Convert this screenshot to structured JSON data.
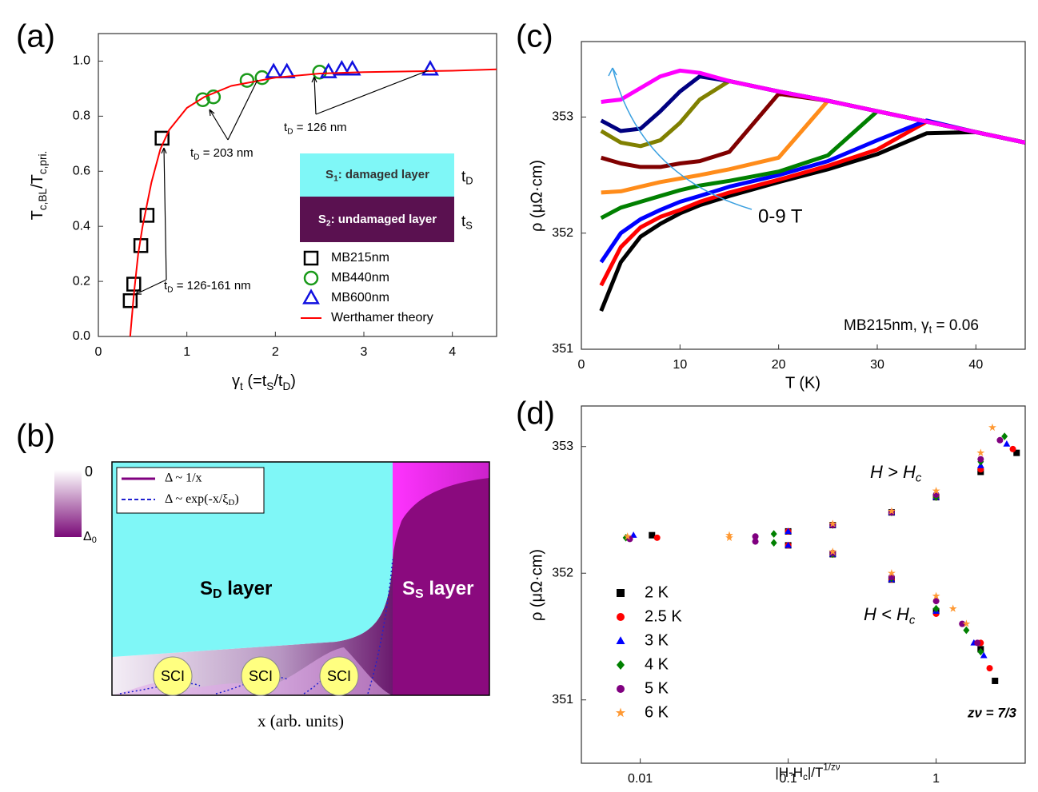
{
  "chart_data": [
    {
      "type": "scatter",
      "label": "(a)",
      "xlabel": [
        "γ",
        "t",
        " (=t",
        "S",
        "/t",
        "D",
        ")"
      ],
      "ylabel": [
        "T",
        "c,BL",
        "/T",
        "c,pri."
      ],
      "xlim": [
        0,
        4.5
      ],
      "ylim": [
        0,
        1.1
      ],
      "xticks": [
        0,
        1,
        2,
        3,
        4
      ],
      "yticks": [
        {
          "value": 0,
          "label": "0.0"
        },
        0.2,
        0.4,
        0.6,
        0.8,
        {
          "value": 1,
          "label": "1.0"
        }
      ],
      "series": [
        {
          "name": "MB215nm",
          "color": "#000000",
          "marker": "square",
          "x": [
            0.36,
            0.4,
            0.48,
            0.55,
            0.72
          ],
          "values": [
            0.13,
            0.19,
            0.33,
            0.44,
            0.72
          ]
        },
        {
          "name": "MB440nm",
          "color": "#1a9a1a",
          "marker": "circle",
          "x": [
            1.18,
            1.3,
            1.68,
            1.85,
            2.5
          ],
          "values": [
            0.86,
            0.87,
            0.93,
            0.94,
            0.96
          ]
        },
        {
          "name": "MB600nm",
          "color": "#1010e0",
          "marker": "triangle",
          "x": [
            1.98,
            2.13,
            2.6,
            2.75,
            2.87,
            3.75
          ],
          "values": [
            0.96,
            0.96,
            0.96,
            0.97,
            0.97,
            0.97
          ]
        },
        {
          "name": "Werthamer theory",
          "color": "#ff0000",
          "marker": "line",
          "x": [
            0.36,
            0.4,
            0.45,
            0.5,
            0.6,
            0.7,
            0.8,
            1.0,
            1.2,
            1.5,
            2.0,
            2.5,
            3.0,
            4.0,
            4.5
          ],
          "values": [
            0.0,
            0.15,
            0.3,
            0.4,
            0.56,
            0.68,
            0.75,
            0.83,
            0.87,
            0.91,
            0.94,
            0.955,
            0.96,
            0.965,
            0.97
          ]
        }
      ],
      "annotations": [
        [
          "t",
          "D",
          " = 203 nm"
        ],
        [
          "t",
          "D",
          " = 126 nm"
        ],
        [
          "t",
          "D",
          " = 126-161 nm"
        ]
      ],
      "inset": [
        [
          "S",
          "1",
          ": damaged layer"
        ],
        [
          "t",
          "D"
        ],
        [
          "S",
          "2",
          ": undamaged layer"
        ],
        [
          "t",
          "S"
        ]
      ]
    },
    {
      "type": "diagram",
      "label": "(b)",
      "left_layer": [
        "S",
        "D",
        " layer"
      ],
      "right_layer": [
        "S",
        "S",
        " layer"
      ],
      "interfaces": [
        "SCI",
        "SCI",
        "SCI"
      ],
      "legend": [
        "Δ ~ 1/x",
        [
          "Δ ~ exp(-x/ξ",
          "D",
          ")"
        ]
      ],
      "colorbar": [
        "0",
        [
          "Δ",
          "0"
        ]
      ],
      "xlabel": "x (arb. units)"
    },
    {
      "type": "line",
      "label": "(c)",
      "xlabel": "T (K)",
      "ylabel": "ρ (μΩ·cm)",
      "xlim": [
        0,
        45
      ],
      "ylim": [
        351,
        353.65
      ],
      "xticks": [
        0,
        10,
        20,
        30,
        40
      ],
      "yticks": [
        351,
        352,
        353
      ],
      "x": [
        2,
        4,
        6,
        8,
        10,
        12,
        15,
        20,
        25,
        30,
        35,
        40,
        45
      ],
      "series": [
        {
          "color": "#000000",
          "values": [
            351.33,
            351.75,
            351.97,
            352.08,
            352.17,
            352.24,
            352.32,
            352.44,
            352.55,
            352.68,
            352.86,
            352.87,
            352.78
          ]
        },
        {
          "color": "#ff0000",
          "values": [
            351.55,
            351.88,
            352.05,
            352.14,
            352.2,
            352.27,
            352.35,
            352.46,
            352.58,
            352.72,
            352.96,
            352.87,
            352.78
          ]
        },
        {
          "color": "#0000ff",
          "values": [
            351.75,
            352.0,
            352.12,
            352.2,
            352.27,
            352.32,
            352.4,
            352.5,
            352.62,
            352.8,
            352.97,
            352.87,
            352.78
          ]
        },
        {
          "color": "#008000",
          "values": [
            352.13,
            352.22,
            352.27,
            352.32,
            352.37,
            352.41,
            352.45,
            352.53,
            352.67,
            353.05,
            352.96,
            352.87,
            352.78
          ]
        },
        {
          "color": "#ff8c1a",
          "values": [
            352.35,
            352.36,
            352.4,
            352.44,
            352.47,
            352.5,
            352.55,
            352.65,
            353.14,
            353.05,
            352.96,
            352.87,
            352.78
          ]
        },
        {
          "color": "#800000",
          "values": [
            352.65,
            352.6,
            352.57,
            352.57,
            352.6,
            352.62,
            352.7,
            353.2,
            353.14,
            353.05,
            352.96,
            352.87,
            352.78
          ]
        },
        {
          "color": "#808000",
          "values": [
            352.88,
            352.78,
            352.75,
            352.8,
            352.95,
            353.15,
            353.31,
            353.22,
            353.14,
            353.05,
            352.96,
            352.87,
            352.78
          ]
        },
        {
          "color": "#000080",
          "values": [
            352.97,
            352.88,
            352.9,
            353.05,
            353.22,
            353.35,
            353.31,
            353.22,
            353.14,
            353.05,
            352.96,
            352.87,
            352.78
          ]
        },
        {
          "color": "#ff00ff",
          "values": [
            353.13,
            353.15,
            353.25,
            353.35,
            353.4,
            353.38,
            353.31,
            353.22,
            353.14,
            353.05,
            352.96,
            352.87,
            352.78
          ]
        }
      ],
      "annotations": [
        "0-9 T",
        [
          "MB215nm, γ",
          "t",
          " = 0.06"
        ]
      ]
    },
    {
      "type": "scatter",
      "label": "(d)",
      "xscale": "log",
      "xlabel": [
        "|H-H",
        "c",
        "|/T",
        "1/zν"
      ],
      "ylabel": "ρ (μΩ·cm)",
      "xlim": [
        0.004,
        4
      ],
      "ylim": [
        350.5,
        353.32
      ],
      "xticks": [
        0.01,
        0.1,
        1
      ],
      "yticks": [
        351,
        352,
        353
      ],
      "series": [
        {
          "name": "2 K",
          "color": "#000000",
          "marker": "square",
          "x": [
            0.012,
            0.1,
            0.2,
            0.5,
            1,
            2,
            3.5,
            0.1,
            0.2,
            0.5,
            1,
            2,
            2.5
          ],
          "values": [
            352.3,
            352.33,
            352.38,
            352.48,
            352.6,
            352.8,
            352.95,
            352.22,
            352.15,
            351.95,
            351.7,
            351.4,
            351.15
          ]
        },
        {
          "name": "2.5 K",
          "color": "#ff0000",
          "marker": "circle",
          "x": [
            0.013,
            0.1,
            0.2,
            0.5,
            1,
            2,
            3.3,
            0.1,
            0.2,
            0.5,
            1,
            2,
            2.3
          ],
          "values": [
            352.28,
            352.33,
            352.38,
            352.48,
            352.6,
            352.82,
            352.98,
            352.22,
            352.15,
            351.95,
            351.68,
            351.45,
            351.25
          ]
        },
        {
          "name": "3 K",
          "color": "#0000ff",
          "marker": "triangle",
          "x": [
            0.009,
            0.1,
            0.2,
            0.5,
            1,
            2,
            3,
            0.1,
            0.2,
            0.5,
            1,
            1.8,
            2.1
          ],
          "values": [
            352.3,
            352.33,
            352.38,
            352.48,
            352.6,
            352.85,
            353.02,
            352.22,
            352.15,
            351.95,
            351.7,
            351.45,
            351.35
          ]
        },
        {
          "name": "4 K",
          "color": "#008000",
          "marker": "diamond",
          "x": [
            0.008,
            0.08,
            0.2,
            0.5,
            1,
            2,
            2.9,
            0.08,
            0.2,
            0.5,
            1,
            1.6,
            2
          ],
          "values": [
            352.28,
            352.31,
            352.38,
            352.48,
            352.6,
            352.88,
            353.08,
            352.24,
            352.15,
            351.96,
            351.72,
            351.55,
            351.38
          ]
        },
        {
          "name": "5 K",
          "color": "#800080",
          "marker": "circle",
          "x": [
            0.0085,
            0.06,
            0.2,
            0.5,
            1,
            2,
            2.7,
            0.06,
            0.2,
            0.5,
            1,
            1.5,
            1.9
          ],
          "values": [
            352.27,
            352.29,
            352.38,
            352.48,
            352.62,
            352.9,
            353.05,
            352.25,
            352.16,
            351.97,
            351.78,
            351.6,
            351.45
          ]
        },
        {
          "name": "6 K",
          "color": "#ff9933",
          "marker": "star",
          "x": [
            0.0082,
            0.04,
            0.2,
            0.5,
            1,
            2,
            2.4,
            0.04,
            0.2,
            0.5,
            1,
            1.3,
            1.6
          ],
          "values": [
            352.29,
            352.3,
            352.39,
            352.49,
            352.65,
            352.95,
            353.15,
            352.28,
            352.17,
            352.0,
            351.82,
            351.72,
            351.6
          ]
        }
      ],
      "annotations": [
        [
          "H > H",
          "c"
        ],
        [
          "H < H",
          "c"
        ],
        "zν = 7/3"
      ]
    }
  ]
}
